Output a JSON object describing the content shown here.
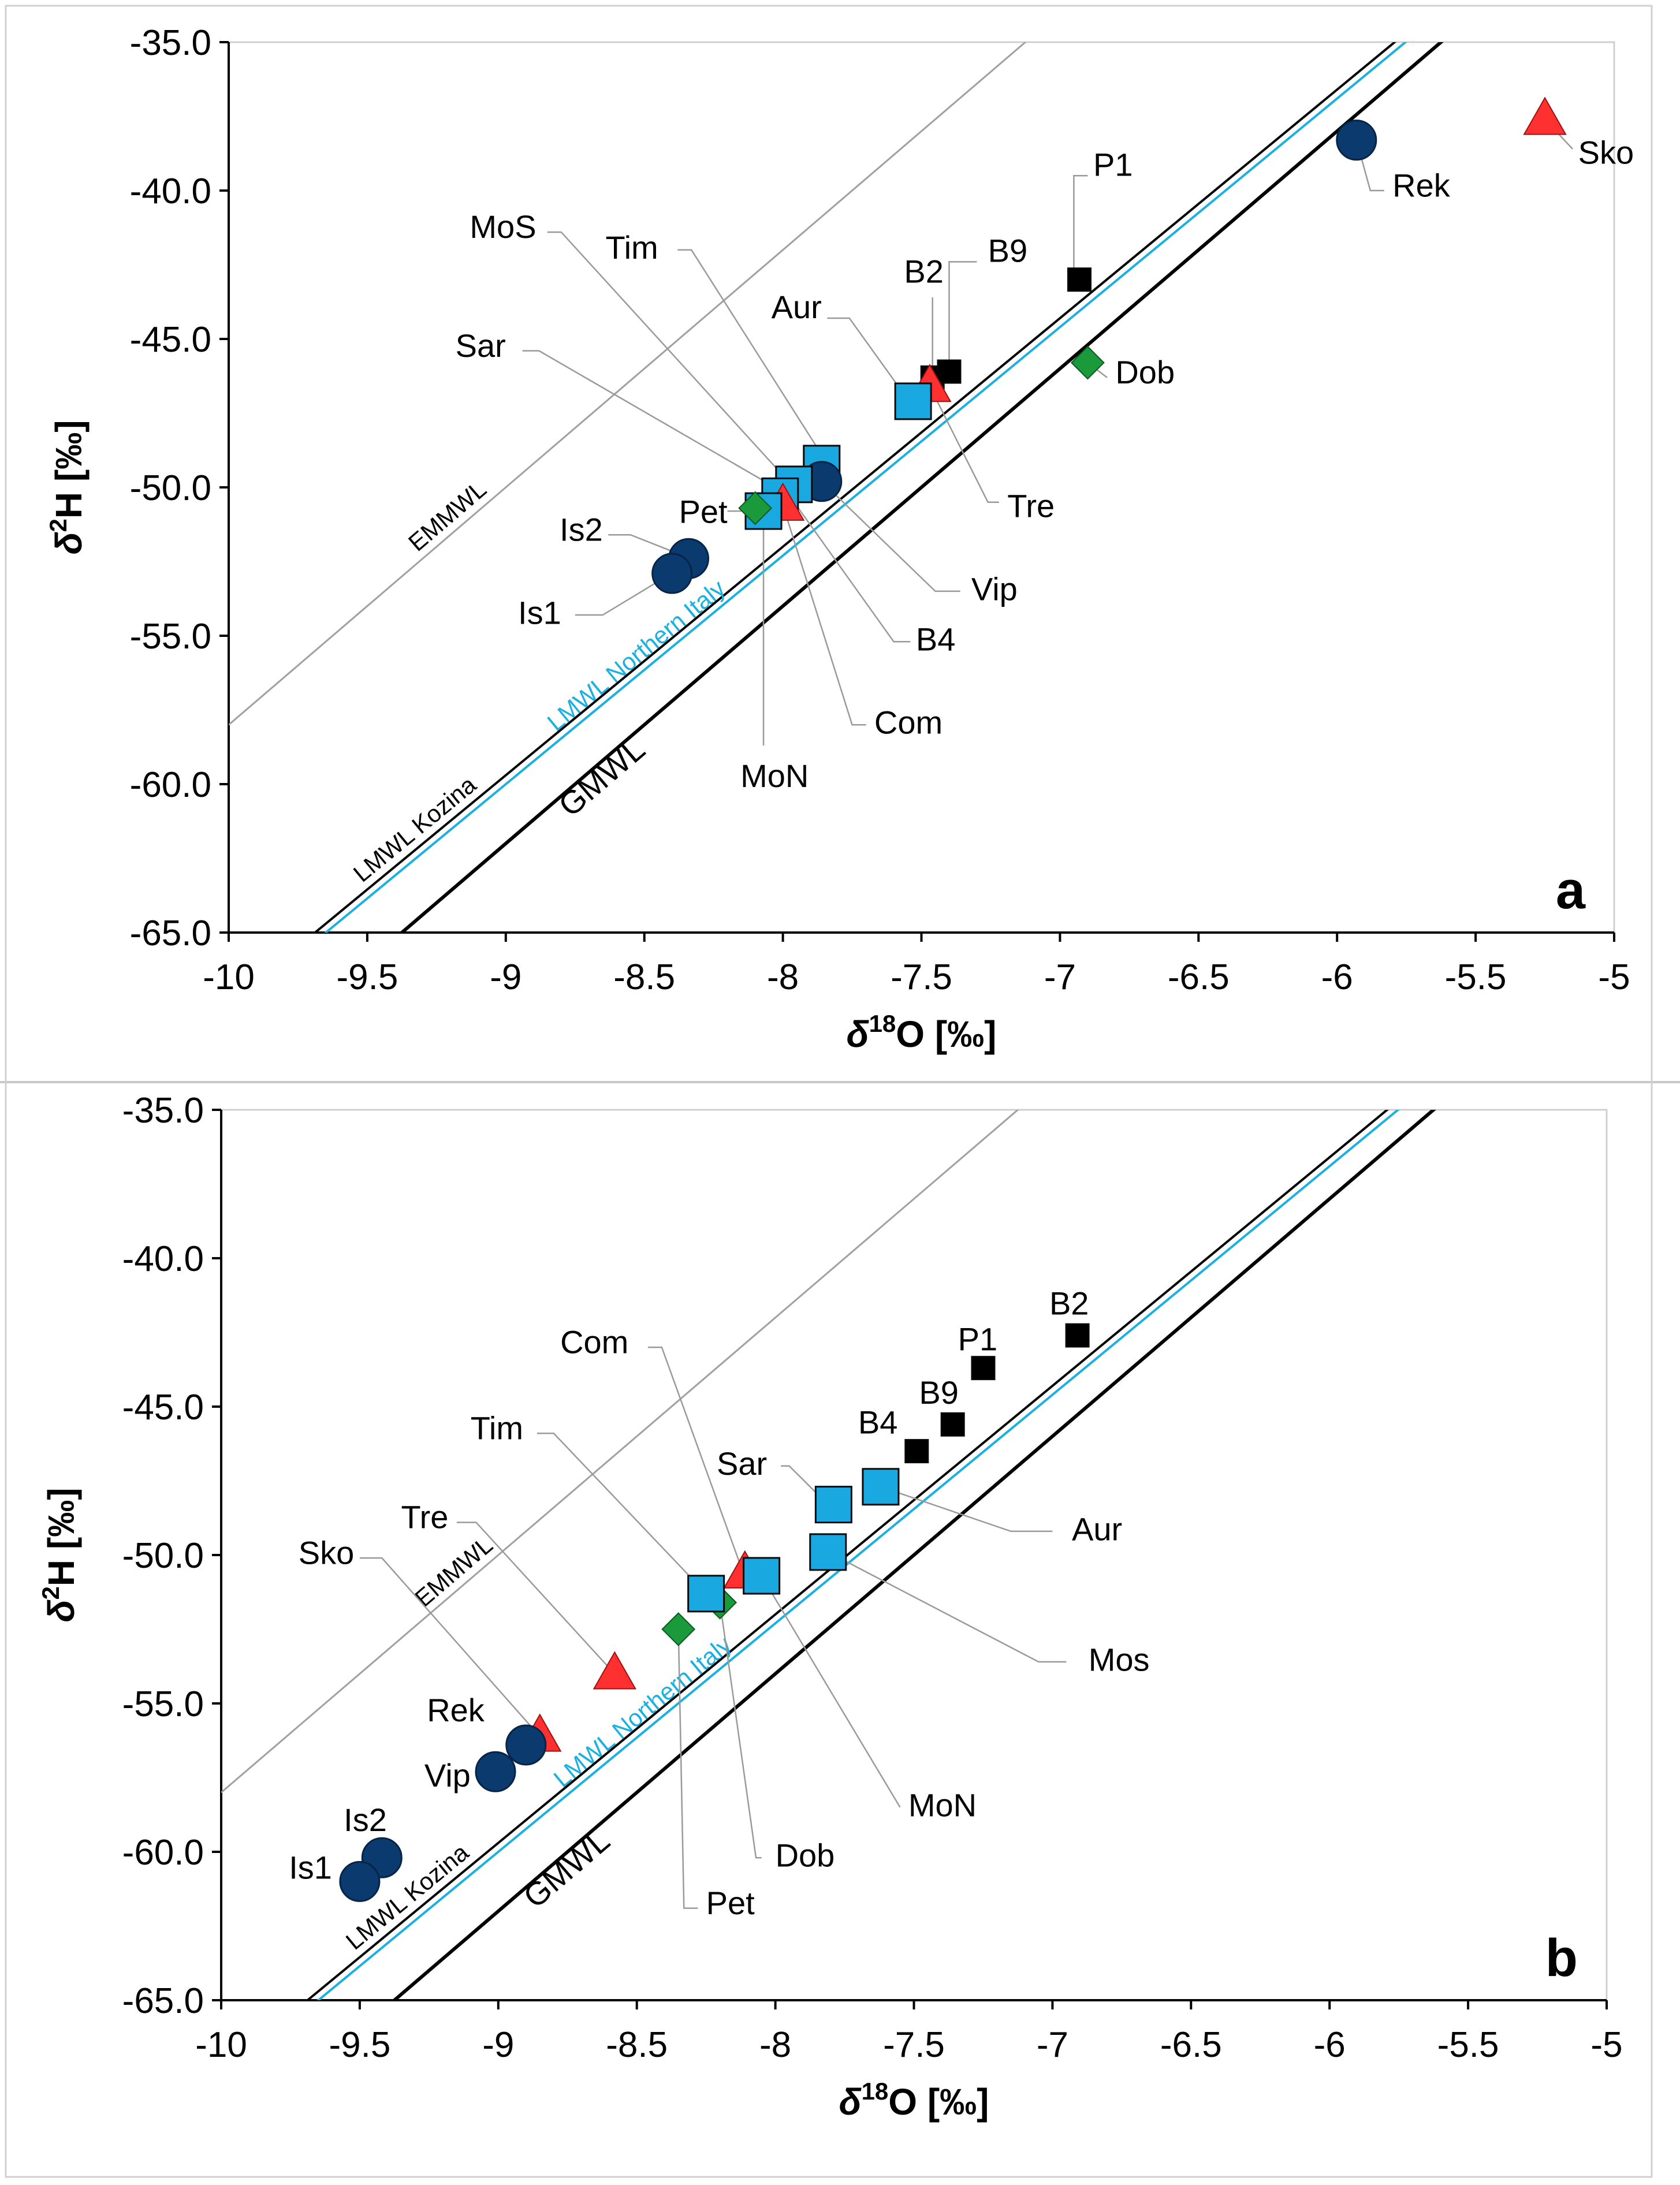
{
  "chart_data": [
    {
      "type": "scatter",
      "panel": "a",
      "xlabel_main": "δ",
      "xlabel_sup": "18",
      "xlabel_rest": "O [‰]",
      "ylabel_main": "δ",
      "ylabel_sup": "2",
      "ylabel_rest": "H [‰]",
      "xlim": [
        -10,
        -5
      ],
      "ylim": [
        -65,
        -35
      ],
      "xticks": [
        -10,
        -9.5,
        -9,
        -8.5,
        -8,
        -7.5,
        -7,
        -6.5,
        -6,
        -5.5,
        -5
      ],
      "xtick_labels": [
        "-10",
        "-9.5",
        "-9",
        "-8.5",
        "-8",
        "-7.5",
        "-7",
        "-6.5",
        "-6",
        "-5.5",
        "-5"
      ],
      "yticks": [
        -35,
        -40,
        -45,
        -50,
        -55,
        -60,
        -65
      ],
      "ytick_labels": [
        "-35.0",
        "-40.0",
        "-45.0",
        "-50.0",
        "-55.0",
        "-60.0",
        "-65.0"
      ],
      "lines": [
        {
          "name": "EMMWL",
          "slope": 8,
          "intercept": 22,
          "color": "#a0a0a0",
          "label": "EMMWL",
          "label_x": -9.3
        },
        {
          "name": "LMWL Kozina",
          "slope": 7.7,
          "intercept": 9.6,
          "color": "#000000",
          "label": "LMWL Kozina",
          "label_x": -9.5
        },
        {
          "name": "LMWL Northern Italy",
          "slope": 7.7,
          "intercept": 9.3,
          "color": "#1ab0e0",
          "label": "LMWL Northern Italy",
          "label_x": -8.8
        },
        {
          "name": "GMWL",
          "slope": 8,
          "intercept": 10,
          "color": "#000000",
          "label": "GMWL",
          "label_x": -8.82
        }
      ],
      "points": [
        {
          "name": "Sko",
          "x": -5.25,
          "y": -37.6,
          "marker": "triangle",
          "color": "#ff3030",
          "size": "large"
        },
        {
          "name": "Rek",
          "x": -5.93,
          "y": -38.3,
          "marker": "circle",
          "color": "#0a3a6e",
          "size": "large"
        },
        {
          "name": "P1",
          "x": -6.93,
          "y": -43.0,
          "marker": "square",
          "color": "#000000",
          "size": "small"
        },
        {
          "name": "Dob",
          "x": -6.9,
          "y": -45.8,
          "marker": "diamond",
          "color": "#1a9a3a",
          "size": "small"
        },
        {
          "name": "B2",
          "x": -7.46,
          "y": -46.3,
          "marker": "square",
          "color": "#000000",
          "size": "small"
        },
        {
          "name": "B9",
          "x": -7.4,
          "y": -46.1,
          "marker": "square",
          "color": "#000000",
          "size": "small"
        },
        {
          "name": "Tre",
          "x": -7.47,
          "y": -46.6,
          "marker": "triangle",
          "color": "#ff3030",
          "size": "large"
        },
        {
          "name": "Aur",
          "x": -7.53,
          "y": -47.1,
          "marker": "square",
          "color": "#1aa8e0",
          "size": "large"
        },
        {
          "name": "Tim",
          "x": -7.86,
          "y": -49.2,
          "marker": "square",
          "color": "#1aa8e0",
          "size": "large"
        },
        {
          "name": "Vip",
          "x": -7.86,
          "y": -49.8,
          "marker": "circle",
          "color": "#0a3a6e",
          "size": "large"
        },
        {
          "name": "MoS",
          "x": -7.96,
          "y": -49.9,
          "marker": "square",
          "color": "#1aa8e0",
          "size": "large"
        },
        {
          "name": "B4",
          "x": -7.99,
          "y": -50.1,
          "marker": "square",
          "color": "#000000",
          "size": "small"
        },
        {
          "name": "Sar",
          "x": -8.01,
          "y": -50.3,
          "marker": "square",
          "color": "#1aa8e0",
          "size": "large"
        },
        {
          "name": "Com",
          "x": -8.0,
          "y": -50.6,
          "marker": "triangle",
          "color": "#ff3030",
          "size": "large"
        },
        {
          "name": "MoN",
          "x": -8.07,
          "y": -50.8,
          "marker": "square",
          "color": "#1aa8e0",
          "size": "large"
        },
        {
          "name": "Pet",
          "x": -8.1,
          "y": -50.7,
          "marker": "diamond",
          "color": "#1a9a3a",
          "size": "small"
        },
        {
          "name": "Is2",
          "x": -8.34,
          "y": -52.4,
          "marker": "circle",
          "color": "#0a3a6e",
          "size": "large"
        },
        {
          "name": "Is1",
          "x": -8.4,
          "y": -52.9,
          "marker": "circle",
          "color": "#0a3a6e",
          "size": "large"
        }
      ],
      "annotations": [
        {
          "text": "Sko",
          "x": -5.13,
          "y": -39.1,
          "anchor": "start",
          "leader": [
            -5.25,
            -37.6,
            -5.15,
            -38.6
          ]
        },
        {
          "text": "Rek",
          "x": -5.8,
          "y": -40.2,
          "anchor": "start",
          "leader": [
            -5.93,
            -38.3,
            -5.88,
            -40.0,
            -5.83,
            -40.0
          ]
        },
        {
          "text": "P1",
          "x": -6.88,
          "y": -39.5,
          "anchor": "start",
          "leader": [
            -6.95,
            -42.9,
            -6.95,
            -39.5,
            -6.9,
            -39.5
          ]
        },
        {
          "text": "B9",
          "x": -7.26,
          "y": -42.4,
          "anchor": "start",
          "leader": [
            -7.4,
            -46.0,
            -7.4,
            -42.4,
            -7.3,
            -42.4
          ]
        },
        {
          "text": "B2",
          "x": -7.42,
          "y": -43.1,
          "anchor": "end",
          "leader": [
            -7.46,
            -46.2,
            -7.46,
            -43.6
          ]
        },
        {
          "text": "Aur",
          "x": -7.86,
          "y": -44.3,
          "anchor": "end",
          "leader": [
            -7.84,
            -44.3,
            -7.76,
            -44.3,
            -7.56,
            -46.9
          ]
        },
        {
          "text": "Dob",
          "x": -6.8,
          "y": -46.5,
          "anchor": "start",
          "leader": [
            -6.9,
            -45.8,
            -6.83,
            -46.3
          ]
        },
        {
          "text": "Tre",
          "x": -7.19,
          "y": -51.0,
          "anchor": "start",
          "leader": [
            -7.47,
            -46.6,
            -7.26,
            -50.5,
            -7.22,
            -50.5
          ]
        },
        {
          "text": "Sar",
          "x": -9.0,
          "y": -45.6,
          "anchor": "end",
          "leader": [
            -8.94,
            -45.4,
            -8.88,
            -45.4,
            -8.01,
            -50.1
          ]
        },
        {
          "text": "MoS",
          "x": -8.89,
          "y": -41.6,
          "anchor": "end",
          "leader": [
            -8.85,
            -41.4,
            -8.8,
            -41.4,
            -7.98,
            -49.8
          ]
        },
        {
          "text": "Tim",
          "x": -8.45,
          "y": -42.3,
          "anchor": "end",
          "leader": [
            -8.38,
            -42.0,
            -8.33,
            -42.0,
            -7.86,
            -48.9
          ]
        },
        {
          "text": "Vip",
          "x": -7.32,
          "y": -53.8,
          "anchor": "start",
          "leader": [
            -7.86,
            -49.8,
            -7.45,
            -53.5,
            -7.36,
            -53.5
          ]
        },
        {
          "text": "B4",
          "x": -7.52,
          "y": -55.5,
          "anchor": "start",
          "leader": [
            -7.99,
            -50.1,
            -7.6,
            -55.2,
            -7.54,
            -55.2
          ]
        },
        {
          "text": "Com",
          "x": -7.67,
          "y": -58.3,
          "anchor": "start",
          "leader": [
            -8.0,
            -50.6,
            -7.75,
            -58.0,
            -7.7,
            -58.0
          ]
        },
        {
          "text": "MoN",
          "x": -8.03,
          "y": -60.1,
          "anchor": "middle",
          "leader": [
            -8.07,
            -50.8,
            -8.07,
            -58.7
          ]
        },
        {
          "text": "Pet",
          "x": -8.2,
          "y": -51.2,
          "anchor": "end",
          "leader": [
            -8.2,
            -50.8,
            -8.15,
            -50.8
          ]
        },
        {
          "text": "Is2",
          "x": -8.65,
          "y": -51.8,
          "anchor": "end",
          "leader": [
            -8.63,
            -51.6,
            -8.55,
            -51.6,
            -8.36,
            -52.3
          ]
        },
        {
          "text": "Is1",
          "x": -8.8,
          "y": -54.6,
          "anchor": "end",
          "leader": [
            -8.75,
            -54.3,
            -8.65,
            -54.3,
            -8.42,
            -53.0
          ]
        }
      ]
    },
    {
      "type": "scatter",
      "panel": "b",
      "xlabel_main": "δ",
      "xlabel_sup": "18",
      "xlabel_rest": "O [‰]",
      "ylabel_main": "δ",
      "ylabel_sup": "2",
      "ylabel_rest": "H [‰]",
      "xlim": [
        -10,
        -5
      ],
      "ylim": [
        -65,
        -35
      ],
      "xticks": [
        -10,
        -9.5,
        -9,
        -8.5,
        -8,
        -7.5,
        -7,
        -6.5,
        -6,
        -5.5,
        -5
      ],
      "xtick_labels": [
        "-10",
        "-9.5",
        "-9",
        "-8.5",
        "-8",
        "-7.5",
        "-7",
        "-6.5",
        "-6",
        "-5.5",
        "-5"
      ],
      "yticks": [
        -35,
        -40,
        -45,
        -50,
        -55,
        -60,
        -65
      ],
      "ytick_labels": [
        "-35.0",
        "-40.0",
        "-45.0",
        "-50.0",
        "-55.0",
        "-60.0",
        "-65.0"
      ],
      "lines": [
        {
          "name": "EMMWL",
          "slope": 8,
          "intercept": 22,
          "color": "#a0a0a0",
          "label": "EMMWL",
          "label_x": -9.25
        },
        {
          "name": "LMWL Kozina",
          "slope": 7.7,
          "intercept": 9.6,
          "color": "#000000",
          "label": "LMWL Kozina",
          "label_x": -9.5
        },
        {
          "name": "LMWL Northern Italy",
          "slope": 7.7,
          "intercept": 9.3,
          "color": "#1ab0e0",
          "label": "LMWL Northern Italy",
          "label_x": -8.75
        },
        {
          "name": "GMWL",
          "slope": 8,
          "intercept": 10,
          "color": "#000000",
          "label": "GMWL",
          "label_x": -8.92
        }
      ],
      "points": [
        {
          "name": "B2",
          "x": -6.91,
          "y": -42.6,
          "marker": "square",
          "color": "#000000",
          "size": "small"
        },
        {
          "name": "P1",
          "x": -7.25,
          "y": -43.7,
          "marker": "square",
          "color": "#000000",
          "size": "small"
        },
        {
          "name": "B9",
          "x": -7.36,
          "y": -45.6,
          "marker": "square",
          "color": "#000000",
          "size": "small"
        },
        {
          "name": "B4",
          "x": -7.49,
          "y": -46.5,
          "marker": "square",
          "color": "#000000",
          "size": "small"
        },
        {
          "name": "Aur",
          "x": -7.62,
          "y": -47.7,
          "marker": "square",
          "color": "#1aa8e0",
          "size": "large"
        },
        {
          "name": "Sar",
          "x": -7.79,
          "y": -48.3,
          "marker": "square",
          "color": "#1aa8e0",
          "size": "large"
        },
        {
          "name": "Mos",
          "x": -7.81,
          "y": -49.9,
          "marker": "square",
          "color": "#1aa8e0",
          "size": "large"
        },
        {
          "name": "Com",
          "x": -8.11,
          "y": -50.6,
          "marker": "triangle",
          "color": "#ff3030",
          "size": "large"
        },
        {
          "name": "MoN",
          "x": -8.05,
          "y": -50.7,
          "marker": "square",
          "color": "#1aa8e0",
          "size": "large"
        },
        {
          "name": "Dob",
          "x": -8.2,
          "y": -51.6,
          "marker": "diamond",
          "color": "#1a9a3a",
          "size": "small"
        },
        {
          "name": "Tim",
          "x": -8.25,
          "y": -51.3,
          "marker": "square",
          "color": "#1aa8e0",
          "size": "large"
        },
        {
          "name": "Pet",
          "x": -8.35,
          "y": -52.5,
          "marker": "diamond",
          "color": "#1a9a3a",
          "size": "small"
        },
        {
          "name": "Tre",
          "x": -8.58,
          "y": -54.0,
          "marker": "triangle",
          "color": "#ff3030",
          "size": "large"
        },
        {
          "name": "Sko",
          "x": -8.85,
          "y": -56.1,
          "marker": "triangle",
          "color": "#ff3030",
          "size": "large"
        },
        {
          "name": "Rek",
          "x": -8.9,
          "y": -56.4,
          "marker": "circle",
          "color": "#0a3a6e",
          "size": "large"
        },
        {
          "name": "Vip",
          "x": -9.01,
          "y": -57.3,
          "marker": "circle",
          "color": "#0a3a6e",
          "size": "large"
        },
        {
          "name": "Is2",
          "x": -9.42,
          "y": -60.2,
          "marker": "circle",
          "color": "#0a3a6e",
          "size": "large"
        },
        {
          "name": "Is1",
          "x": -9.5,
          "y": -61.0,
          "marker": "circle",
          "color": "#0a3a6e",
          "size": "large"
        }
      ],
      "annotations": [
        {
          "text": "B2",
          "x": -6.94,
          "y": -41.9,
          "anchor": "middle",
          "leader": []
        },
        {
          "text": "P1",
          "x": -7.27,
          "y": -43.1,
          "anchor": "middle",
          "leader": []
        },
        {
          "text": "B9",
          "x": -7.41,
          "y": -44.9,
          "anchor": "middle",
          "leader": []
        },
        {
          "text": "B4",
          "x": -7.63,
          "y": -45.9,
          "anchor": "middle",
          "leader": []
        },
        {
          "text": "Sar",
          "x": -8.03,
          "y": -47.3,
          "anchor": "end",
          "leader": [
            -7.98,
            -47.0,
            -7.95,
            -47.0,
            -7.81,
            -48.3
          ]
        },
        {
          "text": "Aur",
          "x": -6.93,
          "y": -49.5,
          "anchor": "start",
          "leader": [
            -7.62,
            -47.7,
            -7.15,
            -49.2,
            -7.0,
            -49.2
          ]
        },
        {
          "text": "Mos",
          "x": -6.87,
          "y": -53.9,
          "anchor": "start",
          "leader": [
            -7.81,
            -49.9,
            -7.05,
            -53.6,
            -6.95,
            -53.6
          ]
        },
        {
          "text": "MoN",
          "x": -7.52,
          "y": -58.8,
          "anchor": "start",
          "leader": [
            -8.05,
            -50.7,
            -7.55,
            -58.5
          ]
        },
        {
          "text": "Com",
          "x": -8.53,
          "y": -43.2,
          "anchor": "end",
          "leader": [
            -8.46,
            -43.0,
            -8.41,
            -43.0,
            -8.12,
            -50.5
          ]
        },
        {
          "text": "Tim",
          "x": -8.91,
          "y": -46.1,
          "anchor": "end",
          "leader": [
            -8.86,
            -45.9,
            -8.8,
            -45.9,
            -8.26,
            -51.2
          ]
        },
        {
          "text": "Dob",
          "x": -8.0,
          "y": -60.5,
          "anchor": "start",
          "leader": [
            -8.2,
            -51.6,
            -8.07,
            -60.2,
            -8.05,
            -60.2
          ]
        },
        {
          "text": "Pet",
          "x": -8.25,
          "y": -62.1,
          "anchor": "start",
          "leader": [
            -8.35,
            -52.5,
            -8.33,
            -61.9,
            -8.28,
            -61.9
          ]
        },
        {
          "text": "Tre",
          "x": -9.18,
          "y": -49.1,
          "anchor": "end",
          "leader": [
            -9.15,
            -48.9,
            -9.08,
            -48.9,
            -8.6,
            -53.8
          ]
        },
        {
          "text": "Sko",
          "x": -9.52,
          "y": -50.3,
          "anchor": "end",
          "leader": [
            -9.5,
            -50.1,
            -9.42,
            -50.1,
            -8.87,
            -55.9
          ]
        },
        {
          "text": "Rek",
          "x": -9.05,
          "y": -55.6,
          "anchor": "end",
          "leader": []
        },
        {
          "text": "Vip",
          "x": -9.1,
          "y": -57.8,
          "anchor": "end",
          "leader": []
        },
        {
          "text": "Is2",
          "x": -9.48,
          "y": -59.3,
          "anchor": "middle",
          "leader": []
        },
        {
          "text": "Is1",
          "x": -9.6,
          "y": -60.9,
          "anchor": "end",
          "leader": []
        }
      ]
    }
  ]
}
